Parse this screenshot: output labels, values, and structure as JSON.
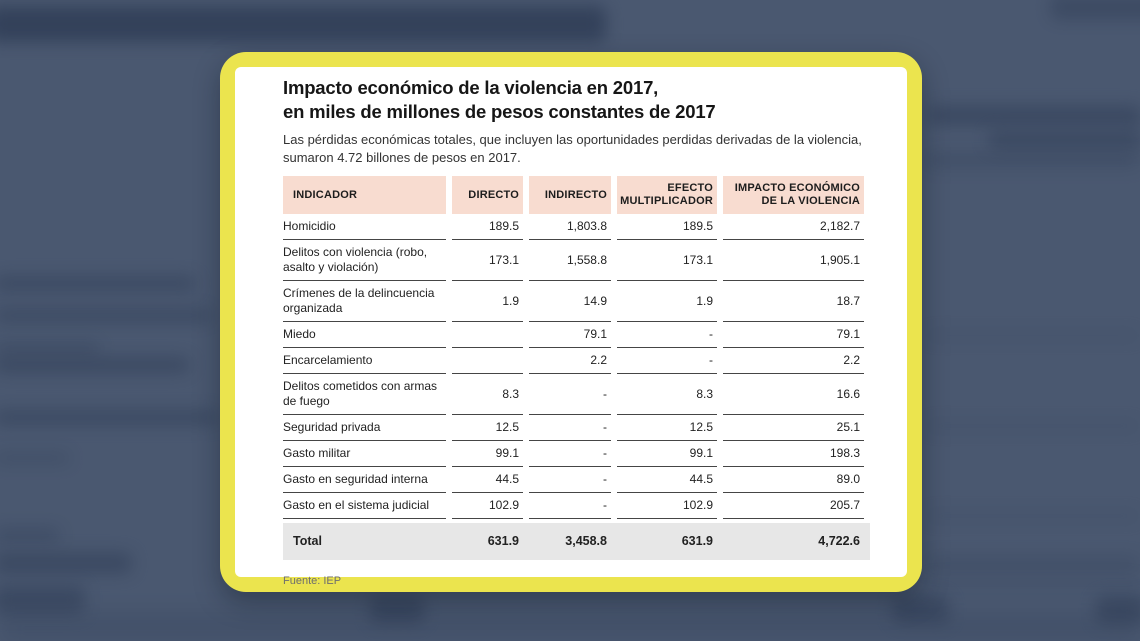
{
  "colors": {
    "page_bg": "#4a5870",
    "accent": "#ebe44e",
    "pink": "#f8dcd0",
    "gray": "#e7e7e7"
  },
  "card": {
    "title_line1": "Impacto económico de la violencia en 2017,",
    "title_line2": "en miles de millones de pesos constantes de 2017",
    "subtitle": "Las pérdidas económicas totales, que incluyen las oportunidades perdidas derivadas de la violencia, sumaron 4.72 billones de pesos en 2017.",
    "source": "Fuente: IEP"
  },
  "table": {
    "columns": [
      "INDICADOR",
      "DIRECTO",
      "INDIRECTO",
      "EFECTO MULTIPLICADOR",
      "IMPACTO ECONÓMICO DE LA VIOLENCIA"
    ],
    "rows": [
      {
        "indicador": "Homicidio",
        "directo": "189.5",
        "indirecto": "1,803.8",
        "efecto": "189.5",
        "impacto": "2,182.7"
      },
      {
        "indicador": "Delitos con violencia (robo, asalto y violación)",
        "directo": "173.1",
        "indirecto": "1,558.8",
        "efecto": "173.1",
        "impacto": "1,905.1"
      },
      {
        "indicador": "Crímenes de la delincuencia organizada",
        "directo": "1.9",
        "indirecto": "14.9",
        "efecto": "1.9",
        "impacto": "18.7"
      },
      {
        "indicador": "Miedo",
        "directo": "",
        "indirecto": "79.1",
        "efecto": "-",
        "impacto": "79.1"
      },
      {
        "indicador": "Encarcelamiento",
        "directo": "",
        "indirecto": "2.2",
        "efecto": "-",
        "impacto": "2.2"
      },
      {
        "indicador": "Delitos cometidos con armas de fuego",
        "directo": "8.3",
        "indirecto": "-",
        "efecto": "8.3",
        "impacto": "16.6"
      },
      {
        "indicador": "Seguridad privada",
        "directo": "12.5",
        "indirecto": "-",
        "efecto": "12.5",
        "impacto": "25.1"
      },
      {
        "indicador": "Gasto militar",
        "directo": "99.1",
        "indirecto": "-",
        "efecto": "99.1",
        "impacto": "198.3"
      },
      {
        "indicador": "Gasto en seguridad interna",
        "directo": "44.5",
        "indirecto": "-",
        "efecto": "44.5",
        "impacto": "89.0"
      },
      {
        "indicador": "Gasto en el sistema judicial",
        "directo": "102.9",
        "indirecto": "-",
        "efecto": "102.9",
        "impacto": "205.7"
      }
    ],
    "total": {
      "indicador": "Total",
      "directo": "631.9",
      "indirecto": "3,458.8",
      "efecto": "631.9",
      "impacto": "4,722.6"
    }
  },
  "chart_data": {
    "type": "table",
    "title": "Impacto económico de la violencia en 2017, en miles de millones de pesos constantes de 2017",
    "subtitle": "Las pérdidas económicas totales, que incluyen las oportunidades perdidas derivadas de la violencia, sumaron 4.72 billones de pesos en 2017.",
    "source": "Fuente: IEP",
    "columns": [
      "INDICADOR",
      "DIRECTO",
      "INDIRECTO",
      "EFECTO MULTIPLICADOR",
      "IMPACTO ECONÓMICO DE LA VIOLENCIA"
    ],
    "rows": [
      [
        "Homicidio",
        189.5,
        1803.8,
        189.5,
        2182.7
      ],
      [
        "Delitos con violencia (robo, asalto y violación)",
        173.1,
        1558.8,
        173.1,
        1905.1
      ],
      [
        "Crímenes de la delincuencia organizada",
        1.9,
        14.9,
        1.9,
        18.7
      ],
      [
        "Miedo",
        null,
        79.1,
        null,
        79.1
      ],
      [
        "Encarcelamiento",
        null,
        2.2,
        null,
        2.2
      ],
      [
        "Delitos cometidos con armas de fuego",
        8.3,
        null,
        8.3,
        16.6
      ],
      [
        "Seguridad privada",
        12.5,
        null,
        12.5,
        25.1
      ],
      [
        "Gasto militar",
        99.1,
        null,
        99.1,
        198.3
      ],
      [
        "Gasto en seguridad interna",
        44.5,
        null,
        44.5,
        89.0
      ],
      [
        "Gasto en el sistema judicial",
        102.9,
        null,
        102.9,
        205.7
      ]
    ],
    "total": [
      "Total",
      631.9,
      3458.8,
      631.9,
      4722.6
    ]
  }
}
